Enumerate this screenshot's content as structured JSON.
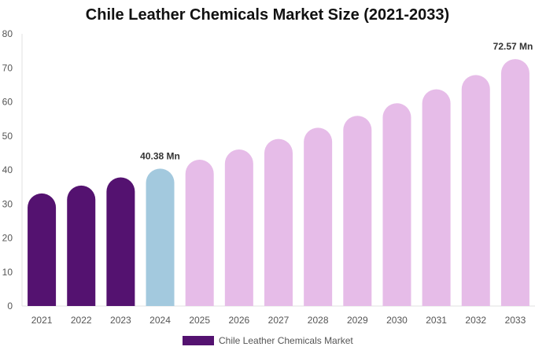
{
  "chart_data": {
    "type": "bar",
    "title": "Chile Leather Chemicals Market Size (2021-2033)",
    "categories": [
      "2021",
      "2022",
      "2023",
      "2024",
      "2025",
      "2026",
      "2027",
      "2028",
      "2029",
      "2030",
      "2031",
      "2032",
      "2033"
    ],
    "series": [
      {
        "name": "Chile Leather Chemicals Market",
        "values": [
          33.1,
          35.4,
          37.8,
          40.38,
          43.0,
          46.0,
          49.1,
          52.4,
          55.9,
          59.6,
          63.7,
          67.9,
          72.57
        ]
      }
    ],
    "bar_colors": [
      "#541270",
      "#541270",
      "#541270",
      "#a3c9de",
      "#e6bce8",
      "#e6bce8",
      "#e6bce8",
      "#e6bce8",
      "#e6bce8",
      "#e6bce8",
      "#e6bce8",
      "#e6bce8",
      "#e6bce8"
    ],
    "data_labels": [
      {
        "index": 3,
        "text": "40.38 Mn"
      },
      {
        "index": 12,
        "text": "72.57 Mn"
      }
    ],
    "yticks": [
      0,
      10,
      20,
      30,
      40,
      50,
      60,
      70,
      80
    ],
    "ylim": [
      0,
      80
    ],
    "grid": false,
    "legend_position": "bottom",
    "legend_color": "#541270",
    "xlabel": "",
    "ylabel": ""
  }
}
